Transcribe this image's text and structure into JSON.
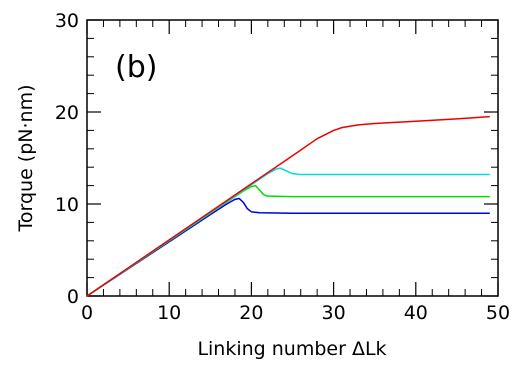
{
  "chart_data": {
    "type": "line",
    "panel_label": "(b)",
    "title": "",
    "xlabel": "Linking number ΔLk",
    "ylabel": "Torque (pN·nm)",
    "xlim": [
      0,
      50
    ],
    "ylim": [
      0,
      30
    ],
    "xticks": [
      0,
      10,
      20,
      30,
      40,
      50
    ],
    "yticks": [
      0,
      10,
      20,
      30
    ],
    "xtick_labels": [
      "0",
      "10",
      "20",
      "30",
      "40",
      "50"
    ],
    "ytick_labels": [
      "0",
      "10",
      "20",
      "30"
    ],
    "grid": false,
    "series": [
      {
        "color": "#0000dd",
        "points": [
          [
            0,
            0
          ],
          [
            5,
            2.95
          ],
          [
            10,
            5.9
          ],
          [
            15,
            8.85
          ],
          [
            17,
            10.0
          ],
          [
            18,
            10.5
          ],
          [
            18.5,
            10.6
          ],
          [
            19,
            10.2
          ],
          [
            19.5,
            9.5
          ],
          [
            20,
            9.15
          ],
          [
            21,
            9.05
          ],
          [
            25,
            9.0
          ],
          [
            30,
            9.0
          ],
          [
            40,
            9.0
          ],
          [
            49,
            9.0
          ]
        ]
      },
      {
        "color": "#00dd00",
        "points": [
          [
            0,
            0
          ],
          [
            5,
            3.0
          ],
          [
            10,
            6.0
          ],
          [
            15,
            9.0
          ],
          [
            18,
            10.8
          ],
          [
            19,
            11.4
          ],
          [
            20,
            11.9
          ],
          [
            20.5,
            12.0
          ],
          [
            21,
            11.5
          ],
          [
            21.5,
            11.0
          ],
          [
            22,
            10.85
          ],
          [
            25,
            10.8
          ],
          [
            30,
            10.8
          ],
          [
            40,
            10.8
          ],
          [
            49,
            10.8
          ]
        ]
      },
      {
        "color": "#00dddd",
        "points": [
          [
            0,
            0
          ],
          [
            5,
            3.02
          ],
          [
            10,
            6.05
          ],
          [
            15,
            9.05
          ],
          [
            20,
            12.1
          ],
          [
            22,
            13.3
          ],
          [
            23,
            13.8
          ],
          [
            23.5,
            13.9
          ],
          [
            24,
            13.7
          ],
          [
            25,
            13.3
          ],
          [
            26,
            13.2
          ],
          [
            30,
            13.2
          ],
          [
            40,
            13.2
          ],
          [
            49,
            13.2
          ]
        ]
      },
      {
        "color": "#ee0000",
        "points": [
          [
            0,
            0
          ],
          [
            5,
            3.05
          ],
          [
            10,
            6.1
          ],
          [
            15,
            9.15
          ],
          [
            20,
            12.2
          ],
          [
            25,
            15.25
          ],
          [
            28,
            17.1
          ],
          [
            30,
            18.0
          ],
          [
            31,
            18.3
          ],
          [
            33,
            18.6
          ],
          [
            35,
            18.75
          ],
          [
            40,
            19.0
          ],
          [
            45,
            19.25
          ],
          [
            49,
            19.5
          ]
        ]
      }
    ]
  }
}
